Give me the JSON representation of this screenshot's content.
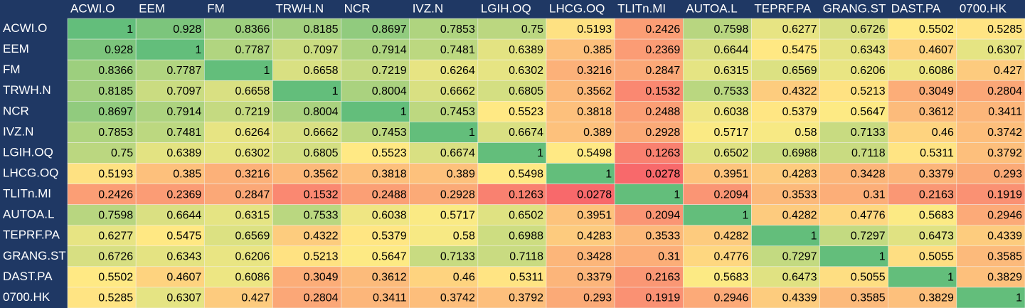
{
  "chart_data": {
    "type": "heatmap",
    "x_categories": [
      "ACWI.O",
      "EEM",
      "FM",
      "TRWH.N",
      "NCR",
      "IVZ.N",
      "LGIH.OQ",
      "LHCG.OQ",
      "TLITn.MI",
      "AUTOA.L",
      "TEPRF.PA",
      "GRANG.ST",
      "DAST.PA",
      "0700.HK"
    ],
    "y_categories": [
      "ACWI.O",
      "EEM",
      "FM",
      "TRWH.N",
      "NCR",
      "IVZ.N",
      "LGIH.OQ",
      "LHCG.OQ",
      "TLITn.MI",
      "AUTOA.L",
      "TEPRF.PA",
      "GRANG.ST",
      "DAST.PA",
      "0700.HK"
    ],
    "values": [
      [
        1,
        0.928,
        0.8366,
        0.8185,
        0.8697,
        0.7853,
        0.75,
        0.5193,
        0.2426,
        0.7598,
        0.6277,
        0.6726,
        0.5502,
        0.5285
      ],
      [
        0.928,
        1,
        0.7787,
        0.7097,
        0.7914,
        0.7481,
        0.6389,
        0.385,
        0.2369,
        0.6644,
        0.5475,
        0.6343,
        0.4607,
        0.6307
      ],
      [
        0.8366,
        0.7787,
        1,
        0.6658,
        0.7219,
        0.6264,
        0.6302,
        0.3216,
        0.2847,
        0.6315,
        0.6569,
        0.6206,
        0.6086,
        0.427
      ],
      [
        0.8185,
        0.7097,
        0.6658,
        1,
        0.8004,
        0.6662,
        0.6805,
        0.3562,
        0.1532,
        0.7533,
        0.4322,
        0.5213,
        0.3049,
        0.2804
      ],
      [
        0.8697,
        0.7914,
        0.7219,
        0.8004,
        1,
        0.7453,
        0.5523,
        0.3818,
        0.2488,
        0.6038,
        0.5379,
        0.5647,
        0.3612,
        0.3411
      ],
      [
        0.7853,
        0.7481,
        0.6264,
        0.6662,
        0.7453,
        1,
        0.6674,
        0.389,
        0.2928,
        0.5717,
        0.58,
        0.7133,
        0.46,
        0.3742
      ],
      [
        0.75,
        0.6389,
        0.6302,
        0.6805,
        0.5523,
        0.6674,
        1,
        0.5498,
        0.1263,
        0.6502,
        0.6988,
        0.7118,
        0.5311,
        0.3792
      ],
      [
        0.5193,
        0.385,
        0.3216,
        0.3562,
        0.3818,
        0.389,
        0.5498,
        1,
        0.0278,
        0.3951,
        0.4283,
        0.3428,
        0.3379,
        0.293
      ],
      [
        0.2426,
        0.2369,
        0.2847,
        0.1532,
        0.2488,
        0.2928,
        0.1263,
        0.0278,
        1,
        0.2094,
        0.3533,
        0.31,
        0.2163,
        0.1919
      ],
      [
        0.7598,
        0.6644,
        0.6315,
        0.7533,
        0.6038,
        0.5717,
        0.6502,
        0.3951,
        0.2094,
        1,
        0.4282,
        0.4776,
        0.5683,
        0.2946
      ],
      [
        0.6277,
        0.5475,
        0.6569,
        0.4322,
        0.5379,
        0.58,
        0.6988,
        0.4283,
        0.3533,
        0.4282,
        1,
        0.7297,
        0.6473,
        0.4339
      ],
      [
        0.6726,
        0.6343,
        0.6206,
        0.5213,
        0.5647,
        0.7133,
        0.7118,
        0.3428,
        0.31,
        0.4776,
        0.7297,
        1,
        0.5055,
        0.3585
      ],
      [
        0.5502,
        0.4607,
        0.6086,
        0.3049,
        0.3612,
        0.46,
        0.5311,
        0.3379,
        0.2163,
        0.5683,
        0.6473,
        0.5055,
        1,
        0.3829
      ],
      [
        0.5285,
        0.6307,
        0.427,
        0.2804,
        0.3411,
        0.3742,
        0.3792,
        0.293,
        0.1919,
        0.2946,
        0.4339,
        0.3585,
        0.3829,
        1
      ]
    ],
    "color_scale": [
      "#f8696b",
      "#ffeb84",
      "#63be7b"
    ]
  }
}
